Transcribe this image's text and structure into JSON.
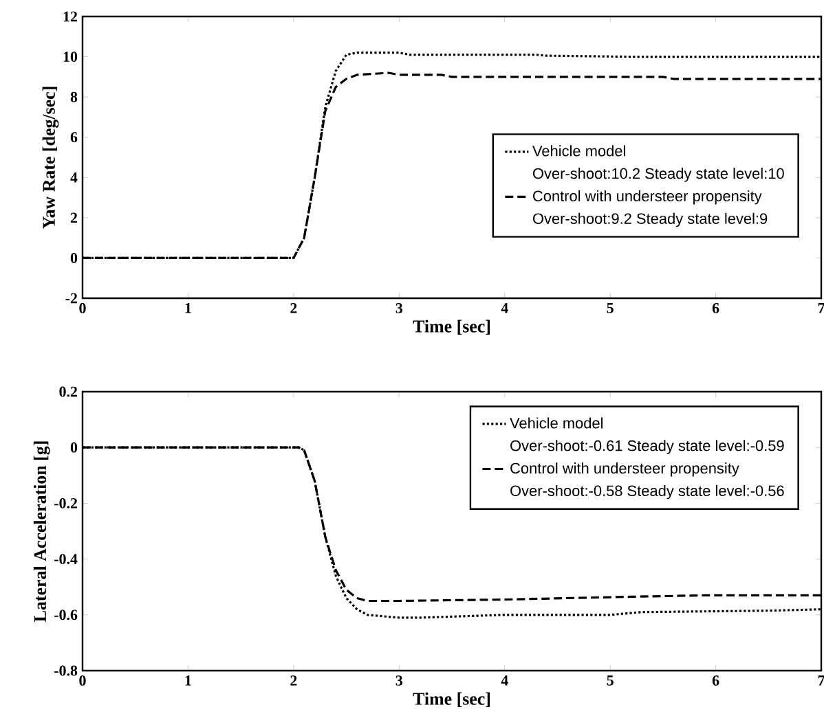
{
  "chart_data": [
    {
      "type": "line",
      "xlabel": "Time [sec]",
      "ylabel": "Yaw Rate [deg/sec]",
      "xlim": [
        0,
        7
      ],
      "ylim": [
        -2,
        12
      ],
      "xticks": [
        0,
        1,
        2,
        3,
        4,
        5,
        6,
        7
      ],
      "yticks": [
        -2,
        0,
        2,
        4,
        6,
        8,
        10,
        12
      ],
      "legend": "right",
      "annotations": [
        "Over-shoot:10.2 Steady state level:10",
        "Over-shoot:9.2 Steady state level:9"
      ],
      "series": [
        {
          "name": "Vehicle model",
          "color": "#000000",
          "line_style": "dotted",
          "x": [
            0,
            2.0,
            2.1,
            2.2,
            2.3,
            2.4,
            2.5,
            2.6,
            3.0,
            3.1,
            4.3,
            4.4,
            5.2,
            7
          ],
          "values": [
            0,
            0,
            1,
            4,
            7.5,
            9.3,
            10.1,
            10.2,
            10.2,
            10.1,
            10.1,
            10.05,
            10.0,
            10.0
          ]
        },
        {
          "name": "Control with understeer propensity",
          "color": "#000000",
          "line_style": "dashed",
          "x": [
            0,
            2.0,
            2.1,
            2.2,
            2.3,
            2.4,
            2.5,
            2.6,
            2.9,
            3.0,
            3.4,
            3.5,
            5.5,
            5.6,
            7
          ],
          "values": [
            0,
            0,
            1,
            4,
            7.3,
            8.5,
            8.9,
            9.1,
            9.2,
            9.1,
            9.1,
            9.0,
            9.0,
            8.9,
            8.9
          ]
        }
      ]
    },
    {
      "type": "line",
      "xlabel": "Time [sec]",
      "ylabel": "Lateral Acceleration [g]",
      "xlim": [
        0,
        7
      ],
      "ylim": [
        -0.8,
        0.2
      ],
      "xticks": [
        0,
        1,
        2,
        3,
        4,
        5,
        6,
        7
      ],
      "yticks": [
        -0.8,
        -0.6,
        -0.4,
        -0.2,
        0,
        0.2
      ],
      "legend": "top right",
      "annotations": [
        "Over-shoot:-0.61 Steady state level:-0.59",
        "Over-shoot:-0.58 Steady state level:-0.56"
      ],
      "series": [
        {
          "name": "Vehicle model",
          "color": "#000000",
          "line_style": "dotted",
          "x": [
            0,
            2.05,
            2.1,
            2.2,
            2.3,
            2.4,
            2.5,
            2.6,
            2.7,
            3.0,
            3.2,
            3.6,
            4.0,
            5.0,
            5.3,
            6.5,
            7
          ],
          "values": [
            0,
            0,
            -0.01,
            -0.12,
            -0.32,
            -0.46,
            -0.54,
            -0.58,
            -0.6,
            -0.61,
            -0.61,
            -0.605,
            -0.6,
            -0.6,
            -0.59,
            -0.585,
            -0.58
          ]
        },
        {
          "name": "Control with understeer propensity",
          "color": "#000000",
          "line_style": "dashed",
          "x": [
            0,
            2.05,
            2.1,
            2.2,
            2.3,
            2.4,
            2.5,
            2.6,
            2.7,
            3.0,
            4.0,
            4.6,
            5.2,
            5.9,
            7
          ],
          "values": [
            0,
            0,
            -0.01,
            -0.12,
            -0.32,
            -0.44,
            -0.51,
            -0.54,
            -0.55,
            -0.55,
            -0.545,
            -0.54,
            -0.535,
            -0.53,
            -0.53
          ]
        }
      ]
    }
  ]
}
